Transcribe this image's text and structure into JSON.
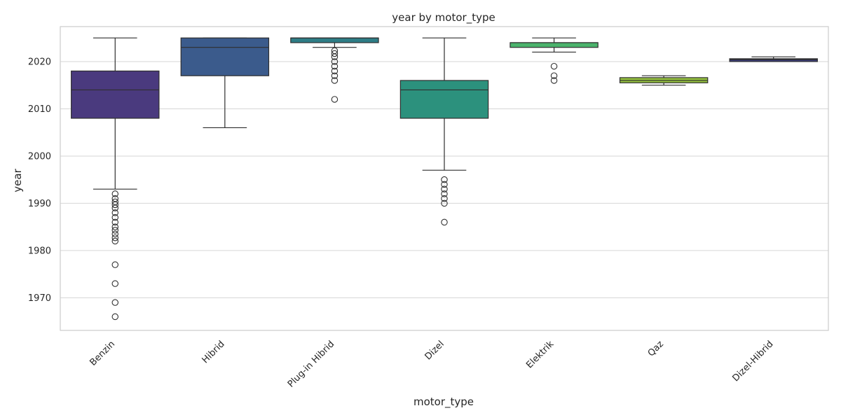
{
  "chart_data": {
    "type": "box",
    "title": "year by motor_type",
    "xlabel": "motor_type",
    "ylabel": "year",
    "ylim": [
      1963.1,
      2027.4
    ],
    "yticks": [
      1970,
      1980,
      1990,
      2000,
      2010,
      2020
    ],
    "grid": true,
    "categories": [
      "Benzin",
      "Hibrid",
      "Plug-in Hibrid",
      "Dizel",
      "Elektrik",
      "Qaz",
      "Dizel-Hibrid"
    ],
    "boxes": [
      {
        "category": "Benzin",
        "q1": 2008,
        "median": 2014,
        "q3": 2018,
        "whisker_low": 1993,
        "whisker_high": 2025,
        "outliers": [
          1966,
          1969,
          1973,
          1977,
          1982,
          1982.7,
          1983.5,
          1984.3,
          1985,
          1986,
          1987,
          1988,
          1989,
          1989.7,
          1990.3,
          1991,
          1992
        ],
        "color": "#4a3a7e"
      },
      {
        "category": "Hibrid",
        "q1": 2017,
        "median": 2023,
        "q3": 2025,
        "whisker_low": 2006,
        "whisker_high": 2025,
        "outliers": [],
        "color": "#3b5b8c"
      },
      {
        "category": "Plug-in Hibrid",
        "q1": 2024,
        "median": 2025,
        "q3": 2025,
        "whisker_low": 2023,
        "whisker_high": 2025,
        "outliers": [
          2012,
          2016,
          2017,
          2018,
          2019,
          2020,
          2021,
          2021.7,
          2022.3
        ],
        "color": "#2e7d86"
      },
      {
        "category": "Dizel",
        "q1": 2008,
        "median": 2014,
        "q3": 2016,
        "whisker_low": 1997,
        "whisker_high": 2025,
        "outliers": [
          1986,
          1990,
          1991,
          1992,
          1993,
          1994,
          1995
        ],
        "color": "#2c917d"
      },
      {
        "category": "Elektrik",
        "q1": 2023,
        "median": 2024,
        "q3": 2024,
        "whisker_low": 2022,
        "whisker_high": 2025,
        "outliers": [
          2016,
          2017,
          2019
        ],
        "color": "#4bb36c"
      },
      {
        "category": "Qaz",
        "q1": 2015.5,
        "median": 2016,
        "q3": 2016.6,
        "whisker_low": 2015,
        "whisker_high": 2017,
        "outliers": [],
        "color": "#95c23e"
      },
      {
        "category": "Dizel-Hibrid",
        "q1": 2020,
        "median": 2020.4,
        "q3": 2020.6,
        "whisker_low": 2020,
        "whisker_high": 2021,
        "outliers": [],
        "color": "#3a3c7e"
      }
    ]
  }
}
